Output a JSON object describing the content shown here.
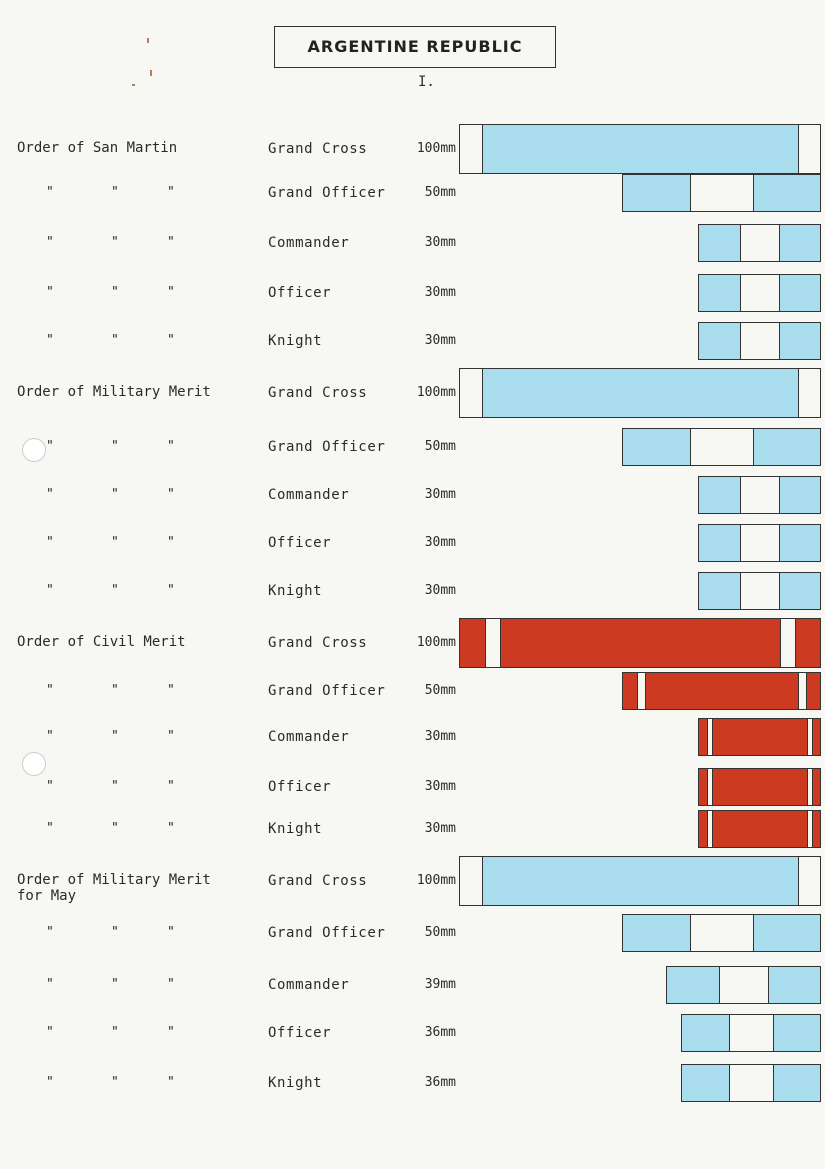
{
  "header": {
    "title": "ARGENTINE REPUBLIC",
    "page_number": "I."
  },
  "colors": {
    "light_blue": "#a9dcec",
    "white": "#f6f6f2",
    "red": "#cd3a22",
    "outline": "#333333"
  },
  "rows": [
    {
      "order": "Order of San Martin",
      "ditto": false,
      "grade": "Grand Cross",
      "size": "100mm",
      "ribbon": "blue-grand-cross"
    },
    {
      "order": "",
      "ditto": true,
      "grade": "Grand Officer",
      "size": "50mm",
      "ribbon": "blue-tri"
    },
    {
      "order": "",
      "ditto": true,
      "grade": "Commander",
      "size": "30mm",
      "ribbon": "blue-tri"
    },
    {
      "order": "",
      "ditto": true,
      "grade": "Officer",
      "size": "30mm",
      "ribbon": "blue-tri"
    },
    {
      "order": "",
      "ditto": true,
      "grade": "Knight",
      "size": "30mm",
      "ribbon": "blue-tri"
    },
    {
      "order": "Order of Military Merit",
      "ditto": false,
      "grade": "Grand Cross",
      "size": "100mm",
      "ribbon": "blue-grand-cross"
    },
    {
      "order": "",
      "ditto": true,
      "grade": "Grand Officer",
      "size": "50mm",
      "ribbon": "blue-tri"
    },
    {
      "order": "",
      "ditto": true,
      "grade": "Commander",
      "size": "30mm",
      "ribbon": "blue-tri"
    },
    {
      "order": "",
      "ditto": true,
      "grade": "Officer",
      "size": "30mm",
      "ribbon": "blue-tri"
    },
    {
      "order": "",
      "ditto": true,
      "grade": "Knight",
      "size": "30mm",
      "ribbon": "blue-tri"
    },
    {
      "order": "Order of Civil Merit",
      "ditto": false,
      "grade": "Grand Cross",
      "size": "100mm",
      "ribbon": "red-white-edge"
    },
    {
      "order": "",
      "ditto": true,
      "grade": "Grand Officer",
      "size": "50mm",
      "ribbon": "red-white-edge"
    },
    {
      "order": "",
      "ditto": true,
      "grade": "Commander",
      "size": "30mm",
      "ribbon": "red-white-edge"
    },
    {
      "order": "",
      "ditto": true,
      "grade": "Officer",
      "size": "30mm",
      "ribbon": "red-white-edge"
    },
    {
      "order": "",
      "ditto": true,
      "grade": "Knight",
      "size": "30mm",
      "ribbon": "red-white-edge"
    },
    {
      "order": "Order of Military Merit\nfor May",
      "ditto": false,
      "grade": "Grand Cross",
      "size": "100mm",
      "ribbon": "blue-grand-cross"
    },
    {
      "order": "",
      "ditto": true,
      "grade": "Grand Officer",
      "size": "50mm",
      "ribbon": "blue-tri"
    },
    {
      "order": "",
      "ditto": true,
      "grade": "Commander",
      "size": "39mm",
      "ribbon": "blue-tri"
    },
    {
      "order": "",
      "ditto": true,
      "grade": "Officer",
      "size": "36mm",
      "ribbon": "blue-tri"
    },
    {
      "order": "",
      "ditto": true,
      "grade": "Knight",
      "size": "36mm",
      "ribbon": "blue-tri"
    }
  ],
  "ditto_mark": "\""
}
